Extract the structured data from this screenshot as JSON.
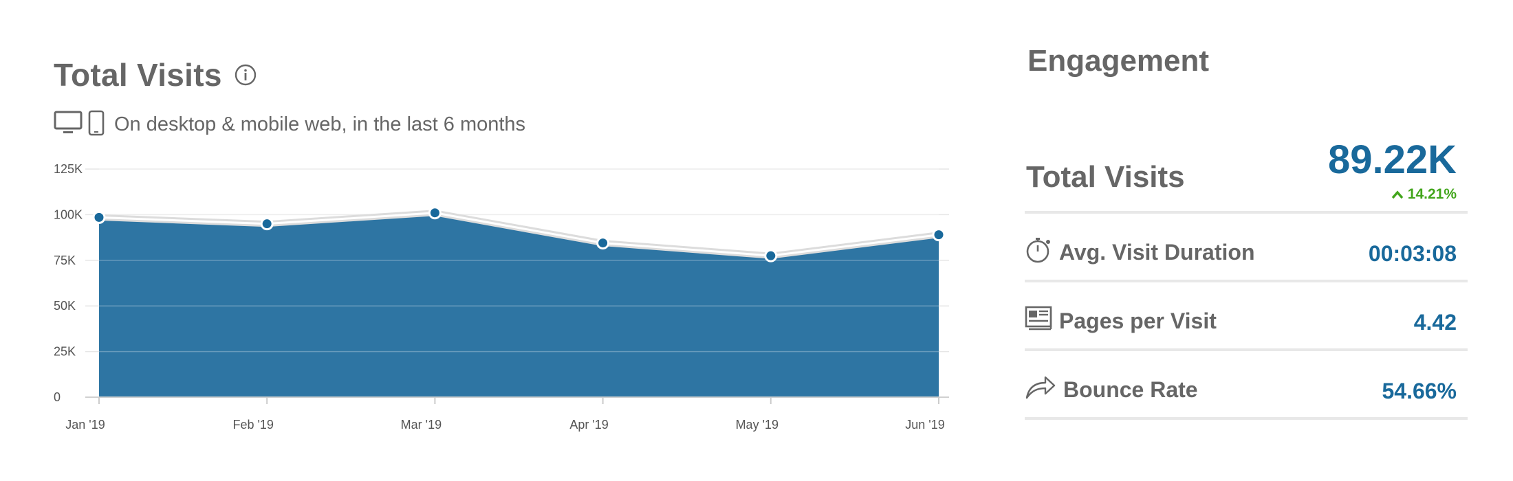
{
  "total_visits_panel": {
    "title": "Total Visits",
    "subtitle": "On desktop & mobile web, in the last 6 months"
  },
  "engagement": {
    "title": "Engagement",
    "total_visits": {
      "label": "Total Visits",
      "value": "89.22K",
      "change": "14.21%",
      "change_color": "#42a51b"
    },
    "metrics": [
      {
        "label": "Avg. Visit Duration",
        "value": "00:03:08",
        "icon": "stopwatch-icon"
      },
      {
        "label": "Pages per Visit",
        "value": "4.42",
        "icon": "pages-icon"
      },
      {
        "label": "Bounce Rate",
        "value": "54.66%",
        "icon": "bounce-arrow-icon"
      }
    ],
    "value_color": "#19699b"
  },
  "chart_data": {
    "type": "area",
    "title": "Total Visits",
    "categories": [
      "Jan '19",
      "Feb '19",
      "Mar '19",
      "Apr '19",
      "May '19",
      "Jun '19"
    ],
    "values": [
      98500,
      95000,
      101000,
      84500,
      77500,
      89000
    ],
    "y_ticks": [
      0,
      25000,
      50000,
      75000,
      100000,
      125000
    ],
    "y_tick_labels": [
      "0",
      "25K",
      "50K",
      "75K",
      "100K",
      "125K"
    ],
    "ylim": [
      0,
      125000
    ],
    "xlabel": "",
    "ylabel": "",
    "grid": true,
    "fill_color": "#2e75a3",
    "marker_color": "#19699b"
  }
}
